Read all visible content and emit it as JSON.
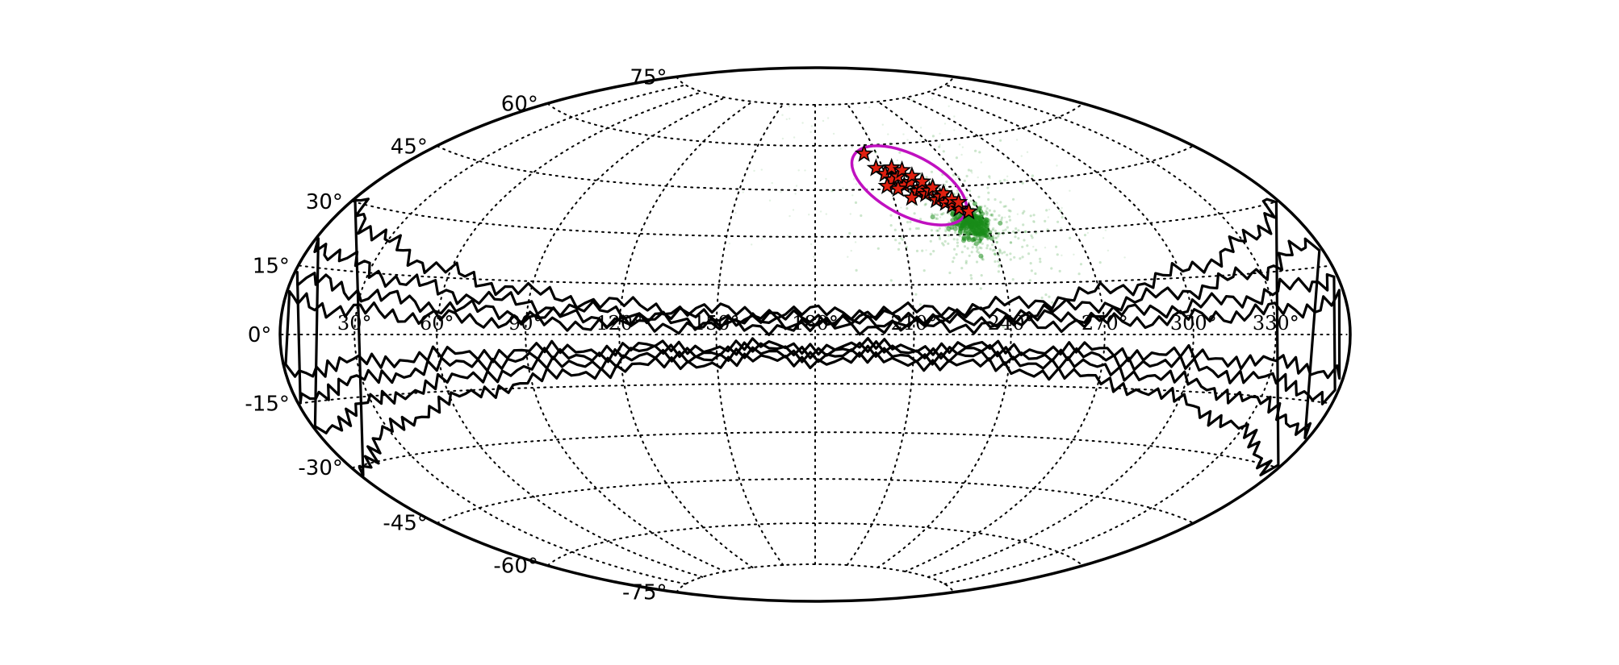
{
  "chart_data": {
    "type": "scatter",
    "projection": "aitoff-hammer",
    "grid": true,
    "lat_tick_labels": [
      "75°",
      "60°",
      "45°",
      "30°",
      "15°",
      "0°",
      "-15°",
      "-30°",
      "-45°",
      "-60°",
      "-75°"
    ],
    "lat_ticks": [
      75,
      60,
      45,
      30,
      15,
      0,
      -15,
      -30,
      -45,
      -60,
      -75
    ],
    "lon_tick_labels": [
      "30°",
      "60°",
      "90°",
      "120°",
      "150°",
      "180°",
      "210°",
      "240°",
      "270°",
      "300°",
      "330°"
    ],
    "lon_ticks": [
      30,
      60,
      90,
      120,
      150,
      180,
      210,
      240,
      270,
      300,
      330
    ],
    "contour_levels_shown": 4,
    "ellipse": {
      "center_lon": 218,
      "center_lat": 46,
      "color": "#c010c0"
    },
    "density_cloud": {
      "center_lon": 235,
      "center_lat": 33,
      "color": "#1a8c1a"
    },
    "stars": {
      "color": "#e02010",
      "points": [
        [
          204,
          57
        ],
        [
          207,
          52
        ],
        [
          210,
          50
        ],
        [
          212,
          48
        ],
        [
          214,
          52
        ],
        [
          215,
          49
        ],
        [
          216,
          46
        ],
        [
          218,
          51
        ],
        [
          219,
          47
        ],
        [
          220,
          44
        ],
        [
          221,
          49
        ],
        [
          222,
          45
        ],
        [
          223,
          43
        ],
        [
          224,
          47
        ],
        [
          225,
          44
        ],
        [
          226,
          41
        ],
        [
          227,
          45
        ],
        [
          228,
          42
        ],
        [
          229,
          40
        ],
        [
          230,
          43
        ],
        [
          231,
          39
        ],
        [
          232,
          41
        ],
        [
          233,
          38
        ],
        [
          234,
          40
        ],
        [
          236,
          37
        ],
        [
          213,
          45
        ],
        [
          217,
          42
        ],
        [
          209,
          46
        ]
      ]
    }
  }
}
